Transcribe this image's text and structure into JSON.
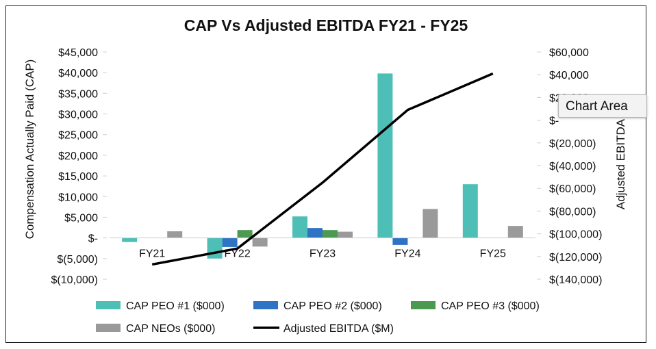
{
  "chart_data": {
    "type": "bar",
    "title": "CAP Vs Adjusted EBITDA FY21 - FY25",
    "categories": [
      "FY21",
      "FY22",
      "FY23",
      "FY24",
      "FY25"
    ],
    "ylabel": "Compensation Actually Paid (CAP)",
    "y2label": "Adjusted EBITDA",
    "ylim": [
      -10000,
      45000
    ],
    "y2lim": [
      -140000,
      60000
    ],
    "yticks": [
      "$45,000",
      "$40,000",
      "$35,000",
      "$30,000",
      "$25,000",
      "$20,000",
      "$15,000",
      "$10,000",
      "$5,000",
      "$-",
      "$(5,000)",
      "$(10,000)"
    ],
    "y2ticks": [
      "$60,000",
      "$40,000",
      "$20,000",
      "$-",
      "$(20,000)",
      "$(40,000)",
      "$(60,000)",
      "$(80,000)",
      "$(100,000)",
      "$(120,000)",
      "$(140,000)"
    ],
    "series": [
      {
        "name": "CAP PEO #1 ($000)",
        "type": "bar",
        "color": "#4dbfb6",
        "values": [
          -1000,
          -5000,
          5200,
          39800,
          13000
        ]
      },
      {
        "name": "CAP PEO #2 ($000)",
        "type": "bar",
        "color": "#2f73c4",
        "values": [
          0,
          -2200,
          2400,
          -1700,
          0
        ]
      },
      {
        "name": "CAP PEO #3 ($000)",
        "type": "bar",
        "color": "#4c9a52",
        "values": [
          0,
          1900,
          1900,
          0,
          0
        ]
      },
      {
        "name": "CAP NEOs ($000)",
        "type": "bar",
        "color": "#9a9a9a",
        "values": [
          1600,
          -2100,
          1500,
          7000,
          2900
        ]
      },
      {
        "name": "Adjusted EBITDA ($M)",
        "type": "line",
        "axis": "secondary",
        "color": "#000000",
        "values": [
          -127000,
          -113000,
          -55000,
          9000,
          41000
        ]
      }
    ],
    "legend_position": "bottom",
    "grid": false
  },
  "tooltip": {
    "text": "Chart Area"
  }
}
